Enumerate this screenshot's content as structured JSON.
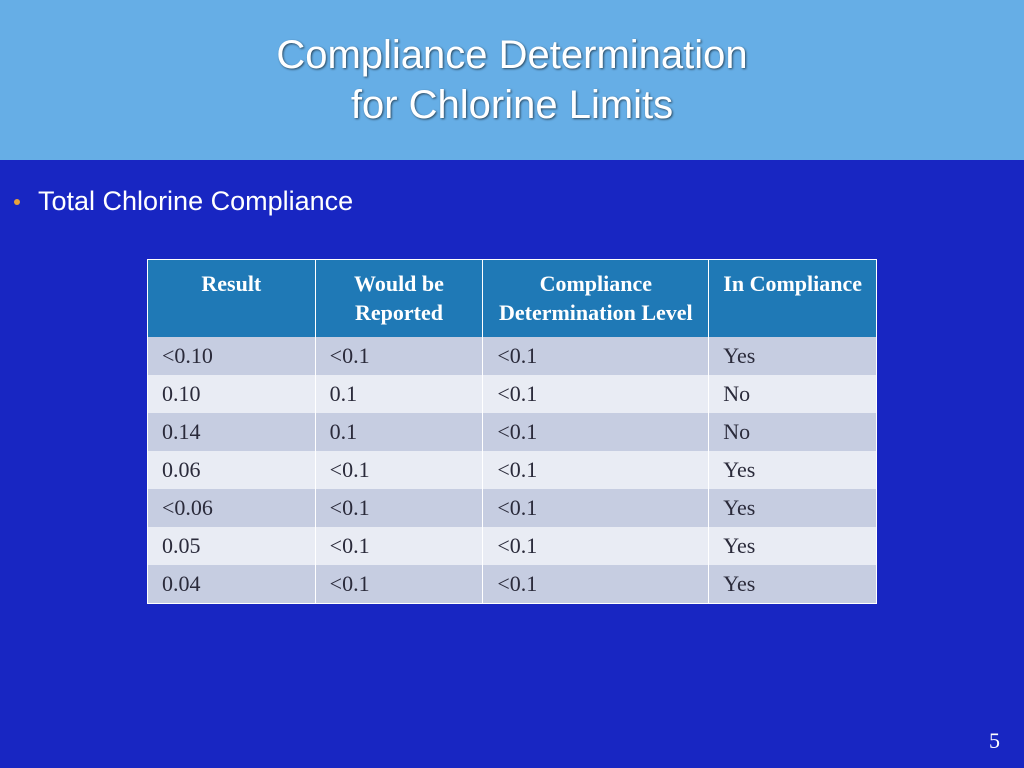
{
  "colors": {
    "slide_background": "#1826c2",
    "title_band_background": "#66aee6",
    "title_text": "#ffffff",
    "bullet_dot": "#e8a23a",
    "bullet_text": "#ffffff",
    "table_header_bg": "#1f79b6",
    "table_header_text": "#ffffff",
    "row_odd_bg": "#c6cde1",
    "row_even_bg": "#e9ecf4",
    "cell_text": "#2a2a3a",
    "border": "#ffffff"
  },
  "title": {
    "line1": "Compliance Determination",
    "line2": "for Chlorine Limits",
    "fontsize": 40
  },
  "bullet": {
    "text": "Total Chlorine Compliance",
    "fontsize": 27
  },
  "table": {
    "type": "table",
    "header_fontsize": 22,
    "cell_fontsize": 22,
    "columns": [
      "Result",
      "Would be Reported",
      "Compliance Determination Level",
      "In Compliance"
    ],
    "column_widths_pct": [
      23,
      23,
      31,
      23
    ],
    "rows": [
      [
        "<0.10",
        "<0.1",
        "<0.1",
        "Yes"
      ],
      [
        "0.10",
        "0.1",
        "<0.1",
        "No"
      ],
      [
        "0.14",
        "0.1",
        "<0.1",
        "No"
      ],
      [
        "0.06",
        "<0.1",
        "<0.1",
        "Yes"
      ],
      [
        "<0.06",
        "<0.1",
        "<0.1",
        "Yes"
      ],
      [
        "0.05",
        "<0.1",
        "<0.1",
        "Yes"
      ],
      [
        "0.04",
        "<0.1",
        "<0.1",
        "Yes"
      ]
    ]
  },
  "page_number": "5"
}
